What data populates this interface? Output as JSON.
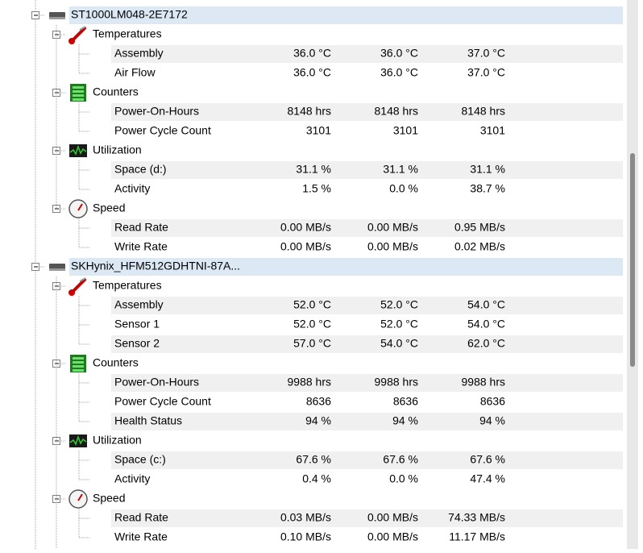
{
  "drives": [
    {
      "name": "ST1000LM048-2E7172",
      "groups": [
        {
          "name": "Temperatures",
          "rows": [
            [
              "Assembly",
              "36.0 °C",
              "36.0 °C",
              "37.0 °C"
            ],
            [
              "Air Flow",
              "36.0 °C",
              "36.0 °C",
              "37.0 °C"
            ]
          ]
        },
        {
          "name": "Counters",
          "rows": [
            [
              "Power-On-Hours",
              "8148 hrs",
              "8148 hrs",
              "8148 hrs"
            ],
            [
              "Power Cycle Count",
              "3101",
              "3101",
              "3101"
            ]
          ]
        },
        {
          "name": "Utilization",
          "rows": [
            [
              "Space (d:)",
              "31.1 %",
              "31.1 %",
              "31.1 %"
            ],
            [
              "Activity",
              "1.5 %",
              "0.0 %",
              "38.7 %"
            ]
          ]
        },
        {
          "name": "Speed",
          "rows": [
            [
              "Read Rate",
              "0.00 MB/s",
              "0.00 MB/s",
              "0.95 MB/s"
            ],
            [
              "Write Rate",
              "0.00 MB/s",
              "0.00 MB/s",
              "0.02 MB/s"
            ]
          ]
        }
      ]
    },
    {
      "name": "SKHynix_HFM512GDHTNI-87A...",
      "groups": [
        {
          "name": "Temperatures",
          "rows": [
            [
              "Assembly",
              "52.0 °C",
              "52.0 °C",
              "54.0 °C"
            ],
            [
              "Sensor 1",
              "52.0 °C",
              "52.0 °C",
              "54.0 °C"
            ],
            [
              "Sensor 2",
              "57.0 °C",
              "54.0 °C",
              "62.0 °C"
            ]
          ]
        },
        {
          "name": "Counters",
          "rows": [
            [
              "Power-On-Hours",
              "9988 hrs",
              "9988 hrs",
              "9988 hrs"
            ],
            [
              "Power Cycle Count",
              "8636",
              "8636",
              "8636"
            ],
            [
              "Health Status",
              "94 %",
              "94 %",
              "94 %"
            ]
          ]
        },
        {
          "name": "Utilization",
          "rows": [
            [
              "Space (c:)",
              "67.6 %",
              "67.6 %",
              "67.6 %"
            ],
            [
              "Activity",
              "0.4 %",
              "0.0 %",
              "47.4 %"
            ]
          ]
        },
        {
          "name": "Speed",
          "rows": [
            [
              "Read Rate",
              "0.03 MB/s",
              "0.00 MB/s",
              "74.33 MB/s"
            ],
            [
              "Write Rate",
              "0.10 MB/s",
              "0.00 MB/s",
              "11.17 MB/s"
            ]
          ]
        }
      ]
    }
  ]
}
